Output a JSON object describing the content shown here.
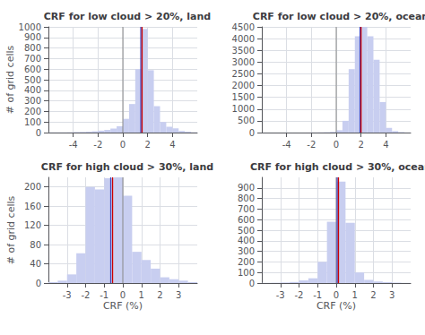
{
  "chart_data": [
    {
      "type": "histogram",
      "title": "CRF for low cloud > 20%, land",
      "bins": [
        -6,
        -5.5,
        -5,
        -4.5,
        -4,
        -3.5,
        -3,
        -2.5,
        -2,
        -1.5,
        -1,
        -0.5,
        0,
        0.5,
        1,
        1.5,
        2,
        2.5,
        3,
        3.5,
        4,
        4.5,
        5,
        5.5,
        6
      ],
      "values": [
        2,
        2,
        2,
        3,
        5,
        6,
        8,
        12,
        18,
        25,
        38,
        60,
        130,
        270,
        600,
        980,
        590,
        250,
        100,
        55,
        40,
        15,
        8,
        3
      ],
      "color": "#c8cef0",
      "vlines": [
        {
          "x": 0.0,
          "color": "#888888"
        },
        {
          "x": 1.45,
          "color": "#4444bb"
        },
        {
          "x": 1.55,
          "color": "#cc0000"
        }
      ],
      "xlim": [
        -6,
        6
      ],
      "ylim": [
        0,
        1000
      ],
      "xticks": [
        -4,
        -2,
        0,
        2,
        4
      ],
      "yticks": [
        0,
        100,
        200,
        300,
        400,
        500,
        600,
        700,
        800,
        900,
        1000
      ],
      "ylabel": "# of grid cells",
      "grid": true
    },
    {
      "type": "histogram",
      "title": "CRF for low cloud > 20%, ocean",
      "bins": [
        -6,
        -5.5,
        -5,
        -4.5,
        -4,
        -3.5,
        -3,
        -2.5,
        -2,
        -1.5,
        -1,
        -0.5,
        0,
        0.5,
        1,
        1.5,
        2,
        2.5,
        3,
        3.5,
        4,
        4.5,
        5,
        5.5,
        6
      ],
      "values": [
        2,
        2,
        2,
        2,
        2,
        2,
        2,
        3,
        5,
        8,
        15,
        30,
        100,
        500,
        2700,
        4100,
        4500,
        4100,
        3100,
        1300,
        200,
        60,
        20,
        5
      ],
      "color": "#c8cef0",
      "vlines": [
        {
          "x": 0.0,
          "color": "#888888"
        },
        {
          "x": 1.92,
          "color": "#4444bb"
        },
        {
          "x": 2.0,
          "color": "#cc0000"
        }
      ],
      "xlim": [
        -6,
        6
      ],
      "ylim": [
        0,
        4500
      ],
      "xticks": [
        -4,
        -2,
        0,
        2,
        4
      ],
      "yticks": [
        0,
        500,
        1000,
        1500,
        2000,
        2500,
        3000,
        3500,
        4000,
        4500
      ],
      "grid": true
    },
    {
      "type": "histogram",
      "title": "CRF for high cloud > 30%, land",
      "bins": [
        -4,
        -3.5,
        -3,
        -2.5,
        -2,
        -1.5,
        -1,
        -0.5,
        0,
        0.5,
        1,
        1.5,
        2,
        2.5,
        3,
        3.5,
        4
      ],
      "values": [
        2,
        5,
        18,
        62,
        200,
        195,
        218,
        220,
        182,
        65,
        48,
        30,
        12,
        8,
        5,
        2
      ],
      "color": "#c8cef0",
      "vlines": [
        {
          "x": 0.0,
          "color": "#888888"
        },
        {
          "x": -0.65,
          "color": "#4444bb"
        },
        {
          "x": -0.55,
          "color": "#cc0000"
        }
      ],
      "xlim": [
        -4,
        4
      ],
      "ylim": [
        0,
        220
      ],
      "xticks": [
        -3,
        -2,
        -1,
        0,
        1,
        2,
        3
      ],
      "yticks": [
        0,
        40,
        80,
        120,
        160,
        200
      ],
      "ylabel": "# of grid cells",
      "xlabel": "CRF (%)",
      "grid": true
    },
    {
      "type": "histogram",
      "title": "CRF for high cloud > 30%, ocean",
      "bins": [
        -4,
        -3.5,
        -3,
        -2.5,
        -2,
        -1.5,
        -1,
        -0.5,
        0,
        0.5,
        1,
        1.5,
        2,
        2.5,
        3,
        3.5,
        4
      ],
      "values": [
        2,
        3,
        5,
        10,
        25,
        45,
        200,
        580,
        960,
        570,
        100,
        30,
        15,
        8,
        4,
        2
      ],
      "color": "#c8cef0",
      "vlines": [
        {
          "x": 0.0,
          "color": "#888888"
        },
        {
          "x": 0.05,
          "color": "#4444bb"
        },
        {
          "x": 0.12,
          "color": "#cc0000"
        }
      ],
      "xlim": [
        -4,
        4
      ],
      "ylim": [
        0,
        1000
      ],
      "xticks": [
        -3,
        -2,
        -1,
        0,
        1,
        2,
        3
      ],
      "yticks": [
        0,
        100,
        200,
        300,
        400,
        500,
        600,
        700,
        800,
        900
      ],
      "xlabel": "CRF (%)",
      "grid": true
    }
  ]
}
